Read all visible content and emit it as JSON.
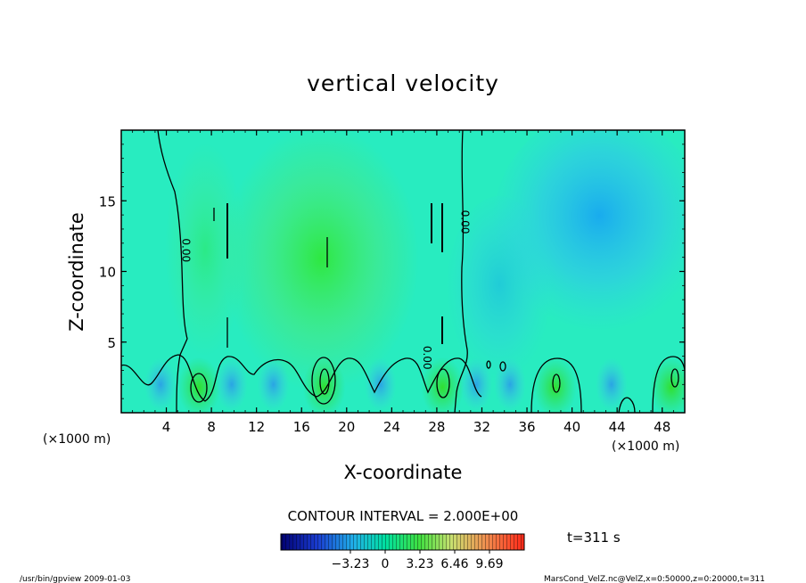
{
  "chart_data": {
    "type": "heatmap",
    "title": "vertical velocity",
    "xlabel": "X-coordinate",
    "ylabel": "Z-coordinate",
    "x_unit_left": "(×1000 m)",
    "x_unit_right": "(×1000 m)",
    "xlim": [
      0,
      50
    ],
    "ylim": [
      0,
      20
    ],
    "x_ticks": [
      4,
      8,
      12,
      16,
      20,
      24,
      28,
      32,
      36,
      40,
      44,
      48
    ],
    "y_ticks": [
      5,
      10,
      15
    ],
    "contour_interval_text": "CONTOUR INTERVAL = 2.000E+00",
    "contour_labels": [
      {
        "text": "0.00",
        "x": 5.4,
        "y": 11.5
      },
      {
        "text": "0.00",
        "x": 30.2,
        "y": 13.5
      },
      {
        "text": "0.00",
        "x": 26.8,
        "y": 3.9
      }
    ],
    "colorbar": {
      "ticks": [
        -3.23,
        0,
        3.23,
        6.46,
        9.69
      ],
      "tick_labels": [
        "−3.23",
        "0",
        "3.23",
        "6.46",
        "9.69"
      ],
      "range": [
        -9.69,
        12.92
      ]
    },
    "time_label": "t=311 s",
    "features": [
      {
        "kind": "updraft",
        "x": 17.8,
        "y": 11.0,
        "value": 2.5
      },
      {
        "kind": "downdraft",
        "x": 42.5,
        "y": 14.5,
        "value": -2.0
      }
    ]
  },
  "footer": {
    "left": "/usr/bin/gpview   2009-01-03",
    "right": "MarsCond_VelZ.nc@VelZ,x=0:50000,z=0:20000,t=311"
  },
  "colors": {
    "low": "#000080",
    "zero": "#00e0a0",
    "high": "#ff3020"
  }
}
